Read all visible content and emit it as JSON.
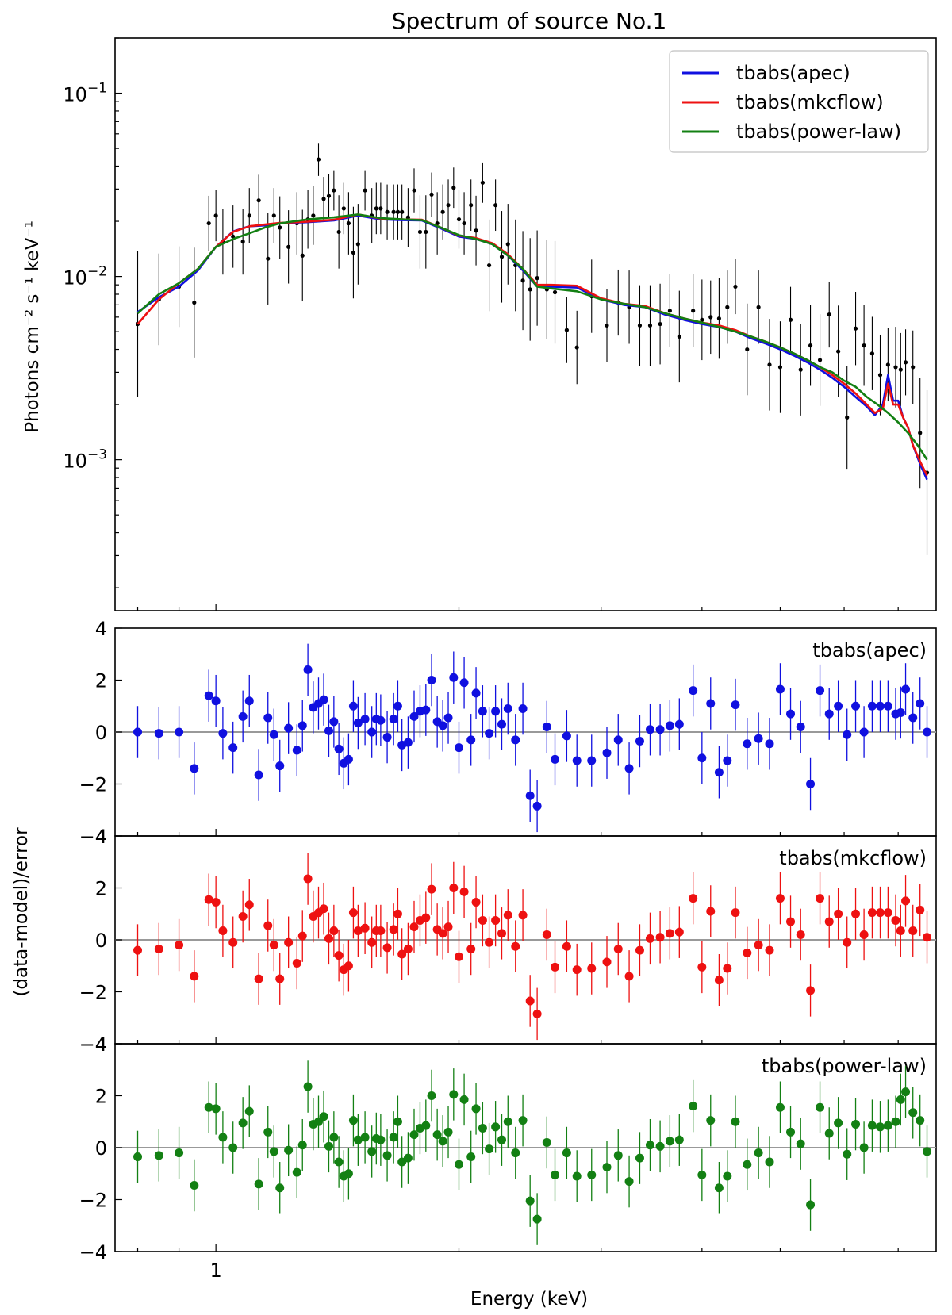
{
  "figure": {
    "title": "Spectrum of source No.1",
    "xlabel": "Energy (keV)",
    "main_ylabel": "Photons cm⁻² s⁻¹ keV⁻¹",
    "resid_ylabel": "(data-model)/error"
  },
  "chart_data": {
    "type": "scatter",
    "x_scale": "log",
    "xlim": [
      0.75,
      7.8
    ],
    "x_ticks": [
      {
        "value": 1,
        "label": "1"
      }
    ],
    "main_panel": {
      "y_scale": "log",
      "ylim": [
        0.00015,
        0.2
      ],
      "y_ticks": [
        {
          "value": 0.1,
          "base": "10",
          "exp": "−1"
        },
        {
          "value": 0.01,
          "base": "10",
          "exp": "−2"
        },
        {
          "value": 0.001,
          "base": "10",
          "exp": "−3"
        }
      ],
      "legend": {
        "position": "top-right",
        "entries": [
          {
            "label": "tbabs(apec)",
            "color": "#1010e0"
          },
          {
            "label": "tbabs(mkcflow)",
            "color": "#ee1111"
          },
          {
            "label": "tbabs(power-law)",
            "color": "#138013"
          }
        ]
      },
      "data": {
        "x": [
          0.8,
          0.85,
          0.9,
          0.94,
          0.98,
          1.0,
          1.02,
          1.05,
          1.08,
          1.1,
          1.13,
          1.16,
          1.18,
          1.2,
          1.23,
          1.26,
          1.28,
          1.3,
          1.32,
          1.34,
          1.36,
          1.38,
          1.4,
          1.42,
          1.44,
          1.46,
          1.48,
          1.5,
          1.53,
          1.56,
          1.58,
          1.6,
          1.63,
          1.66,
          1.68,
          1.7,
          1.73,
          1.76,
          1.79,
          1.82,
          1.85,
          1.88,
          1.91,
          1.94,
          1.97,
          2.0,
          2.03,
          2.07,
          2.1,
          2.14,
          2.18,
          2.22,
          2.26,
          2.3,
          2.35,
          2.4,
          2.45,
          2.5,
          2.57,
          2.63,
          2.72,
          2.8,
          2.92,
          3.05,
          3.15,
          3.25,
          3.35,
          3.45,
          3.55,
          3.65,
          3.75,
          3.9,
          4.0,
          4.1,
          4.2,
          4.3,
          4.4,
          4.55,
          4.7,
          4.85,
          5.0,
          5.15,
          5.3,
          5.45,
          5.6,
          5.75,
          5.9,
          6.05,
          6.2,
          6.35,
          6.5,
          6.65,
          6.8,
          6.95,
          7.05,
          7.15,
          7.3,
          7.45,
          7.6
        ],
        "y": [
          0.0055,
          0.0075,
          0.0088,
          0.0072,
          0.0195,
          0.0215,
          0.0155,
          0.0165,
          0.0155,
          0.0215,
          0.026,
          0.0125,
          0.0215,
          0.0185,
          0.0145,
          0.0195,
          0.013,
          0.0205,
          0.0215,
          0.0435,
          0.0265,
          0.0275,
          0.0295,
          0.0175,
          0.0235,
          0.0195,
          0.0135,
          0.015,
          0.0295,
          0.0215,
          0.0235,
          0.0235,
          0.0225,
          0.0225,
          0.0225,
          0.0225,
          0.021,
          0.0295,
          0.0175,
          0.0175,
          0.028,
          0.0195,
          0.0225,
          0.0245,
          0.0305,
          0.0205,
          0.0195,
          0.0245,
          0.0178,
          0.0325,
          0.0115,
          0.0245,
          0.0128,
          0.015,
          0.0115,
          0.0095,
          0.0085,
          0.0098,
          0.0085,
          0.0082,
          0.0051,
          0.0041,
          0.0078,
          0.0054,
          0.0072,
          0.0068,
          0.0054,
          0.0054,
          0.0055,
          0.0065,
          0.0047,
          0.0065,
          0.0058,
          0.006,
          0.0059,
          0.0068,
          0.0088,
          0.004,
          0.0068,
          0.0033,
          0.0032,
          0.0058,
          0.0031,
          0.0042,
          0.0035,
          0.0062,
          0.0039,
          0.0017,
          0.0052,
          0.0042,
          0.0038,
          0.0029,
          0.0033,
          0.0032,
          0.0031,
          0.0034,
          0.0032,
          0.0014,
          0.00085
        ],
        "err": [
          0.4,
          0.25,
          0.22,
          0.3,
          0.15,
          0.14,
          0.18,
          0.17,
          0.18,
          0.15,
          0.14,
          0.25,
          0.15,
          0.17,
          0.2,
          0.17,
          0.25,
          0.16,
          0.16,
          0.09,
          0.12,
          0.12,
          0.11,
          0.2,
          0.14,
          0.17,
          0.25,
          0.22,
          0.11,
          0.15,
          0.14,
          0.14,
          0.15,
          0.15,
          0.15,
          0.15,
          0.16,
          0.12,
          0.2,
          0.2,
          0.12,
          0.17,
          0.15,
          0.14,
          0.11,
          0.16,
          0.17,
          0.14,
          0.19,
          0.11,
          0.25,
          0.14,
          0.25,
          0.22,
          0.25,
          0.27,
          0.28,
          0.26,
          0.27,
          0.28,
          0.18,
          0.2,
          0.2,
          0.2,
          0.18,
          0.2,
          0.22,
          0.22,
          0.22,
          0.2,
          0.25,
          0.2,
          0.22,
          0.2,
          0.22,
          0.2,
          0.15,
          0.25,
          0.2,
          0.25,
          0.25,
          0.18,
          0.25,
          0.22,
          0.25,
          0.18,
          0.25,
          0.28,
          0.2,
          0.22,
          0.2,
          0.22,
          0.2,
          0.22,
          0.2,
          0.18,
          0.2,
          0.3,
          0.45
        ]
      },
      "models": [
        {
          "name": "tbabs(apec)",
          "color": "#1010e0",
          "x": [
            0.8,
            0.85,
            0.9,
            0.95,
            1.0,
            1.05,
            1.1,
            1.15,
            1.2,
            1.3,
            1.4,
            1.5,
            1.6,
            1.7,
            1.8,
            1.9,
            2.0,
            2.1,
            2.2,
            2.3,
            2.4,
            2.5,
            2.6,
            2.8,
            3.0,
            3.2,
            3.4,
            3.6,
            3.8,
            4.0,
            4.2,
            4.4,
            4.6,
            4.8,
            5.0,
            5.2,
            5.4,
            5.6,
            5.8,
            6.0,
            6.2,
            6.4,
            6.55,
            6.7,
            6.8,
            6.9,
            7.0,
            7.1,
            7.2,
            7.3,
            7.45,
            7.6
          ],
          "y": [
            0.0064,
            0.0077,
            0.0088,
            0.0108,
            0.0145,
            0.0176,
            0.0188,
            0.019,
            0.0195,
            0.0198,
            0.0202,
            0.0215,
            0.0205,
            0.0203,
            0.0202,
            0.0183,
            0.0165,
            0.016,
            0.015,
            0.013,
            0.0108,
            0.0088,
            0.0088,
            0.0087,
            0.0075,
            0.007,
            0.0068,
            0.0062,
            0.0058,
            0.0055,
            0.0053,
            0.005,
            0.0046,
            0.0043,
            0.004,
            0.0037,
            0.0034,
            0.0031,
            0.0028,
            0.0025,
            0.0022,
            0.00195,
            0.00175,
            0.002,
            0.0029,
            0.0021,
            0.0021,
            0.0017,
            0.0015,
            0.0012,
            0.00095,
            0.00078
          ]
        },
        {
          "name": "tbabs(mkcflow)",
          "color": "#ee1111",
          "x": [
            0.8,
            0.85,
            0.9,
            0.95,
            1.0,
            1.05,
            1.1,
            1.15,
            1.2,
            1.3,
            1.4,
            1.5,
            1.6,
            1.7,
            1.8,
            1.9,
            2.0,
            2.1,
            2.2,
            2.3,
            2.4,
            2.5,
            2.6,
            2.8,
            3.0,
            3.2,
            3.4,
            3.6,
            3.8,
            4.0,
            4.2,
            4.4,
            4.6,
            4.8,
            5.0,
            5.2,
            5.4,
            5.6,
            5.8,
            6.0,
            6.2,
            6.4,
            6.55,
            6.7,
            6.8,
            6.9,
            7.0,
            7.1,
            7.2,
            7.3,
            7.45,
            7.6
          ],
          "y": [
            0.0055,
            0.0075,
            0.0092,
            0.011,
            0.0145,
            0.0175,
            0.0188,
            0.0192,
            0.0196,
            0.0199,
            0.0204,
            0.0218,
            0.0207,
            0.0205,
            0.0204,
            0.0185,
            0.0167,
            0.0162,
            0.0152,
            0.0132,
            0.011,
            0.009,
            0.009,
            0.0089,
            0.0076,
            0.0071,
            0.0069,
            0.0063,
            0.0059,
            0.0056,
            0.0054,
            0.0051,
            0.0047,
            0.0044,
            0.0041,
            0.0038,
            0.0035,
            0.0032,
            0.0029,
            0.0026,
            0.0023,
            0.002,
            0.0018,
            0.0019,
            0.0026,
            0.002,
            0.002,
            0.0017,
            0.0015,
            0.0012,
            0.00098,
            0.00082
          ]
        },
        {
          "name": "tbabs(power-law)",
          "color": "#138013",
          "x": [
            0.8,
            0.85,
            0.9,
            0.95,
            1.0,
            1.05,
            1.1,
            1.15,
            1.2,
            1.3,
            1.4,
            1.5,
            1.6,
            1.7,
            1.8,
            1.9,
            2.0,
            2.1,
            2.2,
            2.3,
            2.4,
            2.5,
            2.6,
            2.8,
            3.0,
            3.2,
            3.4,
            3.6,
            3.8,
            4.0,
            4.2,
            4.4,
            4.6,
            4.8,
            5.0,
            5.2,
            5.4,
            5.6,
            5.8,
            6.0,
            6.2,
            6.4,
            6.6,
            6.8,
            7.0,
            7.2,
            7.4,
            7.6
          ],
          "y": [
            0.0063,
            0.008,
            0.0092,
            0.011,
            0.0145,
            0.016,
            0.0172,
            0.0185,
            0.0195,
            0.0205,
            0.021,
            0.0218,
            0.0208,
            0.0205,
            0.0203,
            0.0185,
            0.0168,
            0.016,
            0.015,
            0.013,
            0.011,
            0.0088,
            0.0086,
            0.0083,
            0.0075,
            0.0071,
            0.0068,
            0.0063,
            0.0059,
            0.0056,
            0.0053,
            0.005,
            0.0047,
            0.0044,
            0.0041,
            0.0038,
            0.0035,
            0.0032,
            0.003,
            0.0027,
            0.0025,
            0.0022,
            0.002,
            0.0018,
            0.0016,
            0.0014,
            0.0012,
            0.001
          ]
        }
      ]
    },
    "residual_panels": [
      {
        "label": "tbabs(apec)",
        "color": "#1010e0",
        "ylim": [
          -4,
          4
        ],
        "y_ticks": [
          -4,
          -2,
          0,
          2,
          4
        ],
        "values": [
          0.0,
          -0.05,
          0.0,
          -1.4,
          1.4,
          1.2,
          -0.05,
          -0.6,
          0.6,
          1.2,
          -1.65,
          0.55,
          -0.1,
          -1.3,
          0.15,
          -0.7,
          0.25,
          2.4,
          0.95,
          1.1,
          1.25,
          0.05,
          0.4,
          -0.65,
          -1.2,
          -1.05,
          1.0,
          0.35,
          0.5,
          0.0,
          0.5,
          0.45,
          -0.2,
          0.5,
          1.0,
          -0.5,
          -0.4,
          0.6,
          0.8,
          0.85,
          2.0,
          0.4,
          0.25,
          0.55,
          2.1,
          -0.6,
          1.9,
          -0.3,
          1.5,
          0.8,
          -0.05,
          0.8,
          0.3,
          0.9,
          -0.3,
          0.9,
          -2.45,
          -2.85,
          0.2,
          -1.05,
          -0.15,
          -1.1,
          -1.1,
          -0.8,
          -0.3,
          -1.4,
          -0.35,
          0.1,
          0.1,
          0.25,
          0.3,
          1.6,
          -1.0,
          1.1,
          -1.55,
          -1.1,
          1.05,
          -0.45,
          -0.25,
          -0.45,
          1.65,
          0.7,
          0.2,
          -2.0,
          1.6,
          0.7,
          1.0,
          -0.1,
          1.0,
          0.0,
          1.0,
          1.0,
          1.0,
          0.7,
          0.75,
          1.65,
          0.55,
          1.1,
          0.0
        ]
      },
      {
        "label": "tbabs(mkcflow)",
        "color": "#ee1111",
        "ylim": [
          -4,
          4
        ],
        "y_ticks": [
          -4,
          -2,
          0,
          2,
          4
        ],
        "values": [
          -0.4,
          -0.35,
          -0.2,
          -1.4,
          1.55,
          1.45,
          0.35,
          -0.1,
          0.9,
          1.35,
          -1.5,
          0.55,
          -0.2,
          -1.5,
          -0.1,
          -0.9,
          0.15,
          2.35,
          0.9,
          1.05,
          1.2,
          0.05,
          0.35,
          -0.6,
          -1.15,
          -1.0,
          1.05,
          0.35,
          0.45,
          -0.1,
          0.35,
          0.35,
          -0.3,
          0.4,
          1.0,
          -0.55,
          -0.35,
          0.5,
          0.75,
          0.85,
          1.95,
          0.4,
          0.25,
          0.5,
          2.0,
          -0.65,
          1.85,
          -0.35,
          1.45,
          0.75,
          -0.1,
          0.75,
          0.25,
          0.95,
          -0.25,
          0.95,
          -2.35,
          -2.85,
          0.2,
          -1.05,
          -0.25,
          -1.15,
          -1.1,
          -0.85,
          -0.35,
          -1.4,
          -0.4,
          0.05,
          0.1,
          0.25,
          0.3,
          1.6,
          -1.05,
          1.1,
          -1.55,
          -1.1,
          1.05,
          -0.5,
          -0.2,
          -0.4,
          1.6,
          0.7,
          0.2,
          -1.95,
          1.6,
          0.7,
          1.0,
          -0.1,
          1.0,
          0.2,
          1.05,
          1.05,
          1.05,
          0.75,
          0.35,
          1.5,
          0.35,
          1.15,
          0.1
        ]
      },
      {
        "label": "tbabs(power-law)",
        "color": "#138013",
        "ylim": [
          -4,
          4
        ],
        "y_ticks": [
          -4,
          -2,
          0,
          2,
          4
        ],
        "values": [
          -0.35,
          -0.3,
          -0.2,
          -1.45,
          1.55,
          1.5,
          0.4,
          0.0,
          0.95,
          1.4,
          -1.4,
          0.6,
          -0.15,
          -1.55,
          -0.1,
          -0.95,
          0.1,
          2.35,
          0.9,
          1.0,
          1.2,
          0.05,
          0.4,
          -0.55,
          -1.1,
          -1.0,
          1.05,
          0.3,
          0.4,
          -0.15,
          0.35,
          0.3,
          -0.3,
          0.4,
          1.0,
          -0.55,
          -0.4,
          0.5,
          0.75,
          0.85,
          2.0,
          0.5,
          0.25,
          0.6,
          2.05,
          -0.65,
          1.85,
          -0.35,
          1.5,
          0.75,
          -0.05,
          0.8,
          0.3,
          1.0,
          -0.2,
          1.05,
          -2.05,
          -2.75,
          0.2,
          -1.05,
          -0.2,
          -1.1,
          -1.05,
          -0.75,
          -0.3,
          -1.3,
          -0.4,
          0.1,
          0.05,
          0.25,
          0.3,
          1.6,
          -1.05,
          1.05,
          -1.55,
          -1.1,
          1.0,
          -0.65,
          -0.2,
          -0.55,
          1.55,
          0.6,
          0.15,
          -2.2,
          1.55,
          0.55,
          0.95,
          -0.25,
          0.9,
          0.0,
          0.85,
          0.8,
          0.85,
          1.0,
          1.85,
          2.15,
          1.35,
          1.05,
          -0.15
        ]
      }
    ]
  }
}
